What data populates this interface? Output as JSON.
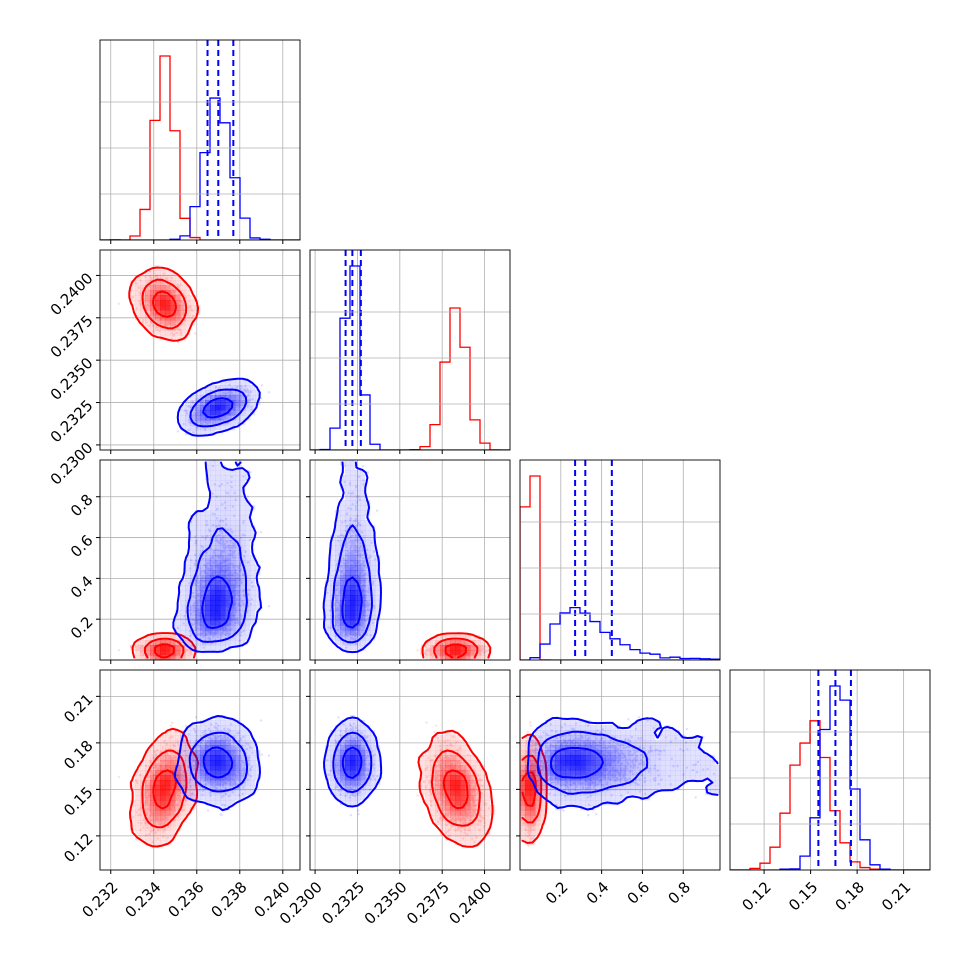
{
  "chart_data": {
    "type": "corner",
    "grid": true,
    "colors": {
      "red": "#ff0000",
      "blue": "#0000ff"
    },
    "parameters": [
      {
        "range": [
          0.2315,
          0.2408
        ],
        "ticks": [
          0.232,
          0.234,
          0.236,
          0.238,
          0.24
        ],
        "labels": [
          "0.232",
          "0.234",
          "0.236",
          "0.238",
          "0.240"
        ]
      },
      {
        "range": [
          0.2297,
          0.2415
        ],
        "ticks": [
          0.23,
          0.2325,
          0.235,
          0.2375,
          0.24
        ],
        "labels": [
          "0.2300",
          "0.2325",
          "0.2350",
          "0.2375",
          "0.2400"
        ]
      },
      {
        "range": [
          0.0,
          0.98
        ],
        "ticks": [
          0.2,
          0.4,
          0.6,
          0.8
        ],
        "labels": [
          "0.2",
          "0.4",
          "0.6",
          "0.8"
        ]
      },
      {
        "range": [
          0.098,
          0.227
        ],
        "ticks": [
          0.12,
          0.15,
          0.18,
          0.21
        ],
        "labels": [
          "0.12",
          "0.15",
          "0.18",
          "0.21"
        ]
      }
    ],
    "series": [
      {
        "color": "red",
        "mean": [
          0.2345,
          0.2383,
          0.05,
          0.15
        ],
        "sd": [
          0.00045,
          0.00065,
          0.012,
          0.012
        ],
        "corr": [
          [
            0,
            1,
            -0.3
          ],
          [
            0,
            3,
            0.25
          ],
          [
            1,
            3,
            -0.3
          ]
        ]
      },
      {
        "color": "blue",
        "mean": [
          0.237,
          0.2322,
          0.33,
          0.167
        ],
        "sd": [
          0.0006,
          0.00045,
          0.13,
          0.009
        ],
        "corr": [
          [
            0,
            1,
            0.55
          ],
          [
            0,
            2,
            0.2
          ]
        ],
        "skew": [
          0,
          0,
          1,
          0
        ],
        "quantiles": [
          [
            0.2365,
            0.237,
            0.2377
          ],
          [
            0.2318,
            0.2322,
            0.2327
          ],
          [
            0.27,
            0.32,
            0.45
          ],
          [
            0.155,
            0.166,
            0.176
          ]
        ]
      }
    ]
  }
}
